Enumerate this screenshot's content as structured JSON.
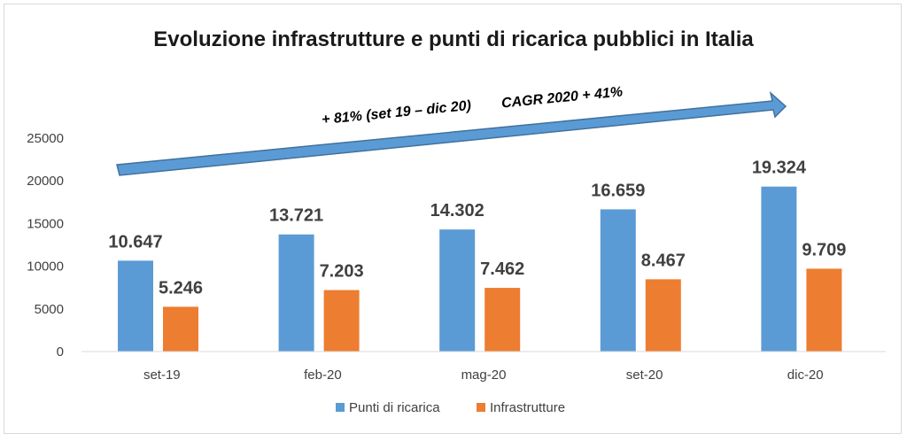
{
  "chart_data": {
    "type": "bar",
    "title": "Evoluzione infrastrutture e punti di ricarica pubblici in Italia",
    "categories": [
      "set-19",
      "feb-20",
      "mag-20",
      "set-20",
      "dic-20"
    ],
    "series": [
      {
        "name": "Punti di ricarica",
        "color": "#5b9bd5",
        "values": [
          10647,
          13721,
          14302,
          16659,
          19324
        ],
        "labels": [
          "10.647",
          "13.721",
          "14.302",
          "16.659",
          "19.324"
        ]
      },
      {
        "name": "Infrastrutture",
        "color": "#ed7d31",
        "values": [
          5246,
          7203,
          7462,
          8467,
          9709
        ],
        "labels": [
          "5.246",
          "7.203",
          "7.462",
          "8.467",
          "9.709"
        ]
      }
    ],
    "ylim": [
      0,
      25000
    ],
    "yticks": [
      0,
      5000,
      10000,
      15000,
      20000,
      25000
    ],
    "ytick_labels": [
      "0",
      "5000",
      "10000",
      "15000",
      "20000",
      "25000"
    ],
    "legend_position": "bottom",
    "gridlines": false,
    "annotations": {
      "growth": "+ 81% (set 19 – dic 20)",
      "cagr": "CAGR 2020 + 41%",
      "arrow_color": "#5b9bd5"
    }
  }
}
